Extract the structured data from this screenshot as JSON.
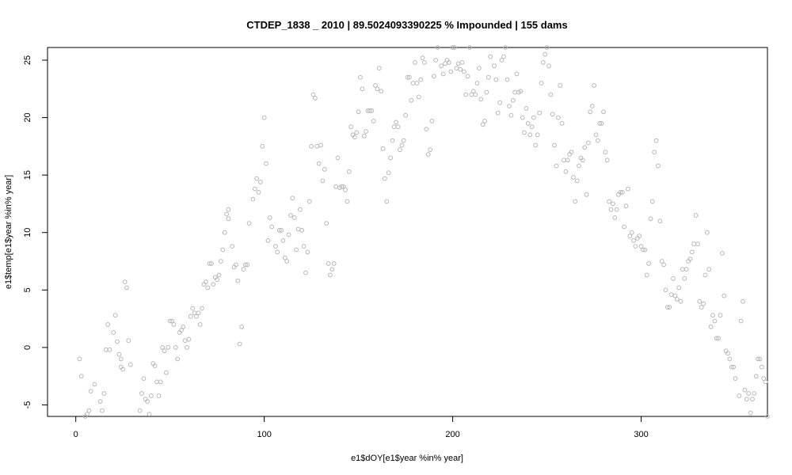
{
  "chart_data": {
    "type": "scatter",
    "title": "CTDEP_1838 _ 2010   |   89.5024093390225  % Impounded |  155  dams",
    "xlabel": "e1$dOY[e1$year %in% year]",
    "ylabel": "e1$temp[e1$year %in% year]",
    "xlim": [
      -15,
      367
    ],
    "ylim": [
      -6,
      26.1
    ],
    "xticks": [
      0,
      100,
      200,
      300
    ],
    "yticks": [
      -5,
      0,
      5,
      10,
      15,
      20,
      25
    ],
    "grid": false,
    "legend": "none",
    "point_color": "#b7b7b7",
    "points": [
      [
        2,
        -1
      ],
      [
        3,
        -2.5
      ],
      [
        5,
        -6
      ],
      [
        6,
        -5.8
      ],
      [
        7,
        -5.5
      ],
      [
        8,
        -3.8
      ],
      [
        10,
        -3.2
      ],
      [
        13,
        -4.7
      ],
      [
        14,
        -5.5
      ],
      [
        15,
        -4
      ],
      [
        16,
        -0.2
      ],
      [
        17,
        2
      ],
      [
        18,
        -0.2
      ],
      [
        20,
        1.3
      ],
      [
        21,
        2.8
      ],
      [
        22,
        0.5
      ],
      [
        23,
        -0.6
      ],
      [
        24,
        -1
      ],
      [
        24,
        -1.7
      ],
      [
        25,
        -1.9
      ],
      [
        26,
        5.7
      ],
      [
        27,
        5.2
      ],
      [
        28,
        0.6
      ],
      [
        29,
        -1.5
      ],
      [
        32,
        -7
      ],
      [
        34,
        -5.5
      ],
      [
        35,
        -4
      ],
      [
        36,
        -2.7
      ],
      [
        37,
        -4.5
      ],
      [
        38,
        -4.7
      ],
      [
        39,
        -5.8
      ],
      [
        40,
        -4.2
      ],
      [
        41,
        -1.4
      ],
      [
        42,
        -1.6
      ],
      [
        43,
        -3
      ],
      [
        44,
        -4.2
      ],
      [
        45,
        -3
      ],
      [
        46,
        0
      ],
      [
        47,
        -0.3
      ],
      [
        48,
        -2.2
      ],
      [
        49,
        0
      ],
      [
        50,
        2.3
      ],
      [
        51,
        2.3
      ],
      [
        52,
        2
      ],
      [
        53,
        0
      ],
      [
        54,
        -1
      ],
      [
        55,
        1.3
      ],
      [
        56,
        1.5
      ],
      [
        57,
        1.8
      ],
      [
        58,
        0.6
      ],
      [
        59,
        0
      ],
      [
        60,
        0.7
      ],
      [
        61,
        2.7
      ],
      [
        62,
        3.4
      ],
      [
        63,
        3
      ],
      [
        64,
        2.7
      ],
      [
        65,
        3
      ],
      [
        66,
        2
      ],
      [
        67,
        3.4
      ],
      [
        68,
        5.5
      ],
      [
        69,
        5.7
      ],
      [
        70,
        5.2
      ],
      [
        71,
        7.3
      ],
      [
        72,
        7.3
      ],
      [
        73,
        5.5
      ],
      [
        74,
        6.1
      ],
      [
        75,
        5.9
      ],
      [
        76,
        6.3
      ],
      [
        77,
        7.5
      ],
      [
        78,
        8.5
      ],
      [
        79,
        10
      ],
      [
        80,
        11.6
      ],
      [
        81,
        12
      ],
      [
        81,
        11.2
      ],
      [
        83,
        8.8
      ],
      [
        84,
        7
      ],
      [
        85,
        7.2
      ],
      [
        86,
        5.8
      ],
      [
        87,
        0.3
      ],
      [
        88,
        1.8
      ],
      [
        89,
        6.8
      ],
      [
        90,
        7.2
      ],
      [
        91,
        7.2
      ],
      [
        92,
        10.8
      ],
      [
        94,
        12.9
      ],
      [
        95,
        13.8
      ],
      [
        96,
        14.7
      ],
      [
        97,
        13.5
      ],
      [
        98,
        14.4
      ],
      [
        99,
        17.5
      ],
      [
        100,
        20
      ],
      [
        101,
        16
      ],
      [
        102,
        9.3
      ],
      [
        103,
        11.3
      ],
      [
        104,
        10.5
      ],
      [
        106,
        8.8
      ],
      [
        107,
        8.3
      ],
      [
        108,
        10.2
      ],
      [
        109,
        10.2
      ],
      [
        110,
        9.3
      ],
      [
        111,
        7.8
      ],
      [
        112,
        7.5
      ],
      [
        113,
        9.8
      ],
      [
        114,
        11.5
      ],
      [
        115,
        13
      ],
      [
        116,
        11.3
      ],
      [
        117,
        8.5
      ],
      [
        118,
        10.3
      ],
      [
        119,
        12
      ],
      [
        120,
        10.2
      ],
      [
        121,
        8.8
      ],
      [
        122,
        6.5
      ],
      [
        123,
        8.3
      ],
      [
        124,
        12.7
      ],
      [
        125,
        17.5
      ],
      [
        126,
        22
      ],
      [
        127,
        21.7
      ],
      [
        128,
        17.5
      ],
      [
        129,
        16
      ],
      [
        130,
        17.6
      ],
      [
        131,
        14.5
      ],
      [
        132,
        15.5
      ],
      [
        133,
        10.8
      ],
      [
        134,
        7.3
      ],
      [
        135,
        6.3
      ],
      [
        136,
        6.8
      ],
      [
        137,
        7.3
      ],
      [
        138,
        14
      ],
      [
        139,
        16.5
      ],
      [
        140,
        13.9
      ],
      [
        141,
        14
      ],
      [
        142,
        14
      ],
      [
        143,
        13.7
      ],
      [
        144,
        12.7
      ],
      [
        145,
        15.3
      ],
      [
        146,
        19.2
      ],
      [
        147,
        18.5
      ],
      [
        148,
        18.3
      ],
      [
        149,
        18.7
      ],
      [
        150,
        20.5
      ],
      [
        151,
        23.5
      ],
      [
        152,
        22.5
      ],
      [
        153,
        18.4
      ],
      [
        154,
        18.8
      ],
      [
        155,
        20.6
      ],
      [
        156,
        20.6
      ],
      [
        157,
        20.6
      ],
      [
        158,
        19.7
      ],
      [
        159,
        22.8
      ],
      [
        160,
        22.5
      ],
      [
        161,
        24.3
      ],
      [
        162,
        22.3
      ],
      [
        163,
        17.3
      ],
      [
        164,
        14.7
      ],
      [
        165,
        12.7
      ],
      [
        166,
        15.2
      ],
      [
        167,
        16.5
      ],
      [
        168,
        18
      ],
      [
        169,
        19.2
      ],
      [
        170,
        19.6
      ],
      [
        171,
        19.2
      ],
      [
        172,
        17.2
      ],
      [
        173,
        17.6
      ],
      [
        174,
        18
      ],
      [
        175,
        20.2
      ],
      [
        176,
        23.5
      ],
      [
        177,
        23.5
      ],
      [
        178,
        21.5
      ],
      [
        179,
        23
      ],
      [
        180,
        24.8
      ],
      [
        181,
        23
      ],
      [
        182,
        21.8
      ],
      [
        183,
        23.3
      ],
      [
        184,
        25.2
      ],
      [
        185,
        24.8
      ],
      [
        186,
        19
      ],
      [
        187,
        16.8
      ],
      [
        188,
        17.2
      ],
      [
        189,
        19.7
      ],
      [
        190,
        23.6
      ],
      [
        191,
        25
      ],
      [
        192,
        26.1
      ],
      [
        194,
        24.5
      ],
      [
        195,
        23.8
      ],
      [
        196,
        24.7
      ],
      [
        197,
        25
      ],
      [
        198,
        24.8
      ],
      [
        199,
        24
      ],
      [
        200,
        26.1
      ],
      [
        201,
        26.1
      ],
      [
        202,
        24.3
      ],
      [
        203,
        24.7
      ],
      [
        204,
        24.2
      ],
      [
        205,
        24.8
      ],
      [
        206,
        24
      ],
      [
        207,
        22
      ],
      [
        208,
        23.6
      ],
      [
        209,
        26.1
      ],
      [
        210,
        22
      ],
      [
        211,
        22.3
      ],
      [
        212,
        22
      ],
      [
        213,
        23
      ],
      [
        214,
        24.3
      ],
      [
        215,
        21.6
      ],
      [
        216,
        19.4
      ],
      [
        217,
        19.7
      ],
      [
        218,
        22.2
      ],
      [
        219,
        23.5
      ],
      [
        220,
        25.3
      ],
      [
        222,
        24.5
      ],
      [
        223,
        23.3
      ],
      [
        224,
        20.4
      ],
      [
        225,
        21.3
      ],
      [
        226,
        25
      ],
      [
        227,
        25.3
      ],
      [
        228,
        26.1
      ],
      [
        229,
        23.3
      ],
      [
        230,
        21
      ],
      [
        231,
        20.2
      ],
      [
        232,
        21.5
      ],
      [
        233,
        22.2
      ],
      [
        234,
        23.8
      ],
      [
        235,
        22.2
      ],
      [
        236,
        22.3
      ],
      [
        237,
        20
      ],
      [
        238,
        18.7
      ],
      [
        239,
        20.8
      ],
      [
        240,
        19.5
      ],
      [
        241,
        18.5
      ],
      [
        242,
        19.2
      ],
      [
        243,
        20
      ],
      [
        244,
        17.6
      ],
      [
        245,
        18.5
      ],
      [
        246,
        20.4
      ],
      [
        247,
        23
      ],
      [
        248,
        24.8
      ],
      [
        249,
        25.5
      ],
      [
        250,
        26.1
      ],
      [
        251,
        24.5
      ],
      [
        252,
        22
      ],
      [
        253,
        20.3
      ],
      [
        254,
        17.6
      ],
      [
        255,
        15.8
      ],
      [
        256,
        20
      ],
      [
        257,
        22.8
      ],
      [
        258,
        19.5
      ],
      [
        259,
        16.3
      ],
      [
        260,
        15.3
      ],
      [
        261,
        16.3
      ],
      [
        262,
        16.8
      ],
      [
        263,
        17
      ],
      [
        264,
        14.8
      ],
      [
        265,
        12.7
      ],
      [
        266,
        14.5
      ],
      [
        267,
        15.8
      ],
      [
        268,
        16.5
      ],
      [
        269,
        16.3
      ],
      [
        270,
        17.4
      ],
      [
        271,
        13.3
      ],
      [
        272,
        17.8
      ],
      [
        273,
        20.5
      ],
      [
        274,
        21
      ],
      [
        275,
        22.8
      ],
      [
        276,
        18.5
      ],
      [
        277,
        18
      ],
      [
        278,
        19.5
      ],
      [
        279,
        19.5
      ],
      [
        280,
        20.5
      ],
      [
        281,
        17
      ],
      [
        282,
        16.3
      ],
      [
        283,
        12.7
      ],
      [
        284,
        12
      ],
      [
        285,
        12.5
      ],
      [
        286,
        11.3
      ],
      [
        287,
        12
      ],
      [
        288,
        13.3
      ],
      [
        289,
        13.5
      ],
      [
        290,
        13.5
      ],
      [
        291,
        10.5
      ],
      [
        292,
        12.3
      ],
      [
        293,
        13.8
      ],
      [
        294,
        9.7
      ],
      [
        295,
        10
      ],
      [
        296,
        9.3
      ],
      [
        297,
        8.8
      ],
      [
        298,
        9.5
      ],
      [
        299,
        9.7
      ],
      [
        300,
        8.8
      ],
      [
        301,
        8.5
      ],
      [
        302,
        8.5
      ],
      [
        303,
        6.3
      ],
      [
        304,
        7.3
      ],
      [
        305,
        11.2
      ],
      [
        306,
        12.7
      ],
      [
        307,
        17
      ],
      [
        308,
        18
      ],
      [
        309,
        15.8
      ],
      [
        310,
        11
      ],
      [
        311,
        7.5
      ],
      [
        312,
        7.2
      ],
      [
        313,
        5
      ],
      [
        314,
        3.5
      ],
      [
        315,
        3.5
      ],
      [
        316,
        4.6
      ],
      [
        317,
        6
      ],
      [
        318,
        4.5
      ],
      [
        319,
        4.2
      ],
      [
        320,
        5.2
      ],
      [
        321,
        4
      ],
      [
        322,
        6.8
      ],
      [
        323,
        6
      ],
      [
        324,
        6.8
      ],
      [
        325,
        7.5
      ],
      [
        326,
        7.7
      ],
      [
        327,
        8.3
      ],
      [
        328,
        9
      ],
      [
        329,
        11.5
      ],
      [
        330,
        9
      ],
      [
        331,
        4
      ],
      [
        332,
        3.5
      ],
      [
        333,
        3.8
      ],
      [
        334,
        6.3
      ],
      [
        335,
        10
      ],
      [
        336,
        6.8
      ],
      [
        337,
        1.8
      ],
      [
        338,
        2.8
      ],
      [
        339,
        2.3
      ],
      [
        340,
        0.8
      ],
      [
        341,
        0.8
      ],
      [
        342,
        2.8
      ],
      [
        343,
        8.2
      ],
      [
        344,
        4.5
      ],
      [
        345,
        -0.3
      ],
      [
        346,
        -0.5
      ],
      [
        347,
        -1
      ],
      [
        348,
        -1.7
      ],
      [
        349,
        -1.7
      ],
      [
        350,
        -2.7
      ],
      [
        351,
        -6.5
      ],
      [
        352,
        -4.2
      ],
      [
        353,
        2.3
      ],
      [
        354,
        4
      ],
      [
        355,
        -3.7
      ],
      [
        356,
        -4.5
      ],
      [
        357,
        -4
      ],
      [
        358,
        -5.7
      ],
      [
        359,
        -4.5
      ],
      [
        360,
        -4
      ],
      [
        361,
        -2.5
      ],
      [
        362,
        -1
      ],
      [
        363,
        -1
      ],
      [
        364,
        -1.7
      ],
      [
        365,
        -2.7
      ],
      [
        366,
        -3
      ],
      [
        367,
        -6
      ]
    ]
  }
}
